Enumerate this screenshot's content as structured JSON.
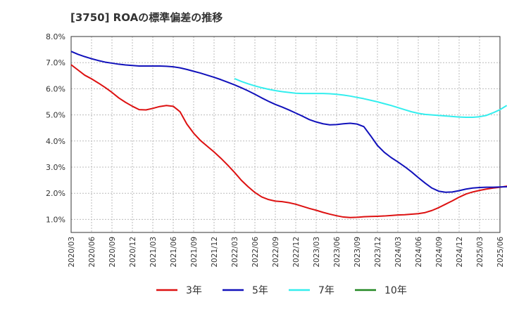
{
  "chart_data": {
    "type": "line",
    "title": "[3750]  ROAの標準偏差の推移",
    "xlabel": "",
    "ylabel": "",
    "ylim": [
      0.5,
      8.0
    ],
    "yticks": [
      1.0,
      2.0,
      3.0,
      4.0,
      5.0,
      6.0,
      7.0,
      8.0
    ],
    "ytick_labels": [
      "1.0%",
      "2.0%",
      "3.0%",
      "4.0%",
      "5.0%",
      "6.0%",
      "7.0%",
      "8.0%"
    ],
    "x_start": "2020/03",
    "x_tick_labels": [
      "2020/03",
      "2020/06",
      "2020/09",
      "2020/12",
      "2021/03",
      "2021/06",
      "2021/09",
      "2021/12",
      "2022/03",
      "2022/06",
      "2022/09",
      "2022/12",
      "2023/03",
      "2023/06",
      "2023/09",
      "2023/12",
      "2024/03",
      "2024/06",
      "2024/09",
      "2024/12",
      "2025/03",
      "2025/06"
    ],
    "legend_position": "bottom",
    "grid": true,
    "series": [
      {
        "name": "3年",
        "color": "#dd1111",
        "start": "2020/03",
        "values": [
          6.92,
          6.72,
          6.52,
          6.38,
          6.22,
          6.05,
          5.86,
          5.65,
          5.48,
          5.33,
          5.2,
          5.19,
          5.25,
          5.32,
          5.36,
          5.33,
          5.12,
          4.65,
          4.3,
          4.02,
          3.8,
          3.58,
          3.34,
          3.08,
          2.8,
          2.5,
          2.25,
          2.03,
          1.86,
          1.76,
          1.7,
          1.68,
          1.64,
          1.58,
          1.5,
          1.42,
          1.35,
          1.27,
          1.2,
          1.14,
          1.09,
          1.07,
          1.08,
          1.1,
          1.11,
          1.12,
          1.13,
          1.15,
          1.17,
          1.18,
          1.2,
          1.22,
          1.26,
          1.34,
          1.45,
          1.58,
          1.71,
          1.85,
          1.97,
          2.05,
          2.11,
          2.16,
          2.2,
          2.23,
          2.27,
          2.35,
          2.55,
          3.08
        ]
      },
      {
        "name": "5年",
        "color": "#1111bb",
        "start": "2020/03",
        "values": [
          7.43,
          7.32,
          7.23,
          7.15,
          7.08,
          7.02,
          6.98,
          6.94,
          6.91,
          6.89,
          6.87,
          6.87,
          6.87,
          6.87,
          6.86,
          6.84,
          6.8,
          6.74,
          6.67,
          6.6,
          6.52,
          6.44,
          6.35,
          6.25,
          6.15,
          6.04,
          5.92,
          5.79,
          5.65,
          5.52,
          5.4,
          5.3,
          5.19,
          5.07,
          4.95,
          4.82,
          4.73,
          4.66,
          4.62,
          4.63,
          4.66,
          4.68,
          4.65,
          4.55,
          4.2,
          3.83,
          3.57,
          3.37,
          3.2,
          3.02,
          2.82,
          2.6,
          2.39,
          2.2,
          2.08,
          2.04,
          2.05,
          2.1,
          2.16,
          2.2,
          2.22,
          2.23,
          2.23,
          2.24,
          2.25,
          2.3,
          2.5,
          2.92
        ]
      },
      {
        "name": "7年",
        "color": "#33eeee",
        "start": "2022/03",
        "values": [
          6.39,
          6.28,
          6.19,
          6.11,
          6.04,
          5.98,
          5.93,
          5.89,
          5.86,
          5.83,
          5.82,
          5.82,
          5.82,
          5.82,
          5.81,
          5.79,
          5.76,
          5.72,
          5.67,
          5.62,
          5.56,
          5.5,
          5.43,
          5.36,
          5.28,
          5.2,
          5.12,
          5.06,
          5.02,
          5.0,
          4.98,
          4.96,
          4.94,
          4.92,
          4.91,
          4.91,
          4.93,
          4.98,
          5.08,
          5.2,
          5.36
        ]
      },
      {
        "name": "10年",
        "color": "#228822",
        "start": "2025/03",
        "values": []
      }
    ]
  }
}
